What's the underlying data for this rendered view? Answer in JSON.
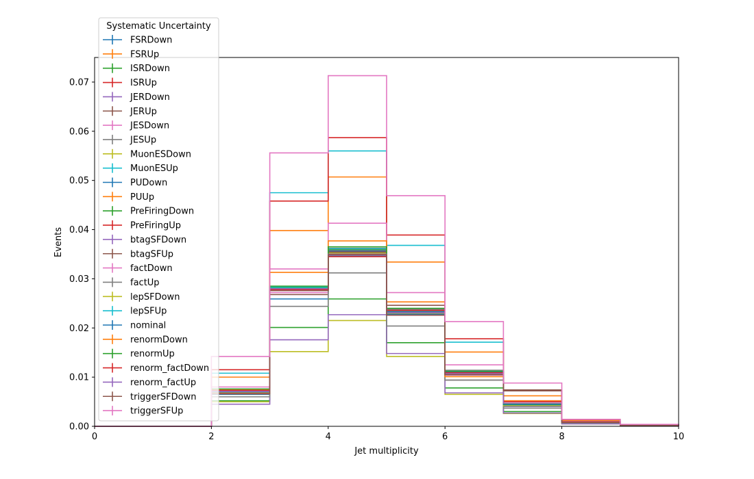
{
  "chart_data": {
    "type": "line",
    "title": "",
    "xlabel": "Jet multiplicity",
    "ylabel": "Events",
    "xlim": [
      0,
      10
    ],
    "ylim": [
      0,
      0.075
    ],
    "xticks": [
      "0",
      "2",
      "4",
      "6",
      "8",
      "10"
    ],
    "yticks": [
      "0.00",
      "0.01",
      "0.02",
      "0.03",
      "0.04",
      "0.05",
      "0.06",
      "0.07"
    ],
    "legend": {
      "title": "Systematic Uncertainty",
      "position": "top-left"
    },
    "bin_edges": [
      0,
      1,
      2,
      3,
      4,
      5,
      6,
      7,
      8,
      9,
      10
    ],
    "series": [
      {
        "name": "FSRDown",
        "color": "#1f77b4",
        "values": [
          0.0,
          0.0,
          0.0068,
          0.0278,
          0.0355,
          0.0232,
          0.0108,
          0.0042,
          0.0008,
          0.0002
        ]
      },
      {
        "name": "FSRUp",
        "color": "#ff7f0e",
        "values": [
          0.0,
          0.0,
          0.0071,
          0.028,
          0.0358,
          0.0234,
          0.0111,
          0.0044,
          0.0009,
          0.0002
        ]
      },
      {
        "name": "ISRDown",
        "color": "#2ca02c",
        "values": [
          0.0,
          0.0,
          0.0072,
          0.0282,
          0.036,
          0.0236,
          0.0112,
          0.0045,
          0.0009,
          0.0002
        ]
      },
      {
        "name": "ISRUp",
        "color": "#d62728",
        "values": [
          0.0,
          0.0,
          0.0067,
          0.0276,
          0.035,
          0.023,
          0.0106,
          0.0041,
          0.0008,
          0.0002
        ]
      },
      {
        "name": "JERDown",
        "color": "#9467bd",
        "values": [
          0.0,
          0.0,
          0.007,
          0.0279,
          0.0356,
          0.0233,
          0.0109,
          0.0043,
          0.0008,
          0.0002
        ]
      },
      {
        "name": "JERUp",
        "color": "#8c564b",
        "values": [
          0.0,
          0.0,
          0.007,
          0.0279,
          0.0355,
          0.0232,
          0.0109,
          0.0043,
          0.0008,
          0.0002
        ]
      },
      {
        "name": "JESDown",
        "color": "#e377c2",
        "values": [
          0.0,
          0.0,
          0.0066,
          0.0272,
          0.0348,
          0.0226,
          0.0104,
          0.004,
          0.0008,
          0.0002
        ]
      },
      {
        "name": "JESUp",
        "color": "#7f7f7f",
        "values": [
          0.0,
          0.0,
          0.0074,
          0.0284,
          0.0362,
          0.0238,
          0.0114,
          0.0046,
          0.0009,
          0.0002
        ]
      },
      {
        "name": "MuonESDown",
        "color": "#bcbd22",
        "values": [
          0.0,
          0.0,
          0.005,
          0.0152,
          0.0215,
          0.0142,
          0.0065,
          0.0026,
          0.0005,
          0.0001
        ]
      },
      {
        "name": "MuonESUp",
        "color": "#17becf",
        "values": [
          0.0,
          0.0,
          0.0108,
          0.0475,
          0.056,
          0.0368,
          0.0171,
          0.0073,
          0.0013,
          0.0003
        ]
      },
      {
        "name": "PUDown",
        "color": "#1f77b4",
        "values": [
          0.0,
          0.0,
          0.0065,
          0.0259,
          0.0346,
          0.0228,
          0.0105,
          0.0041,
          0.0008,
          0.0002
        ]
      },
      {
        "name": "PUUp",
        "color": "#ff7f0e",
        "values": [
          0.0,
          0.0,
          0.01,
          0.0398,
          0.0507,
          0.0334,
          0.0151,
          0.0062,
          0.0012,
          0.0003
        ]
      },
      {
        "name": "PreFiringDown",
        "color": "#2ca02c",
        "values": [
          0.0,
          0.0,
          0.0052,
          0.0201,
          0.0259,
          0.017,
          0.0078,
          0.003,
          0.0006,
          0.0001
        ]
      },
      {
        "name": "PreFiringUp",
        "color": "#d62728",
        "values": [
          0.0,
          0.0,
          0.0115,
          0.0458,
          0.0587,
          0.0389,
          0.0178,
          0.0073,
          0.0014,
          0.0003
        ]
      },
      {
        "name": "btagSFDown",
        "color": "#9467bd",
        "values": [
          0.0,
          0.0,
          0.0045,
          0.0176,
          0.0227,
          0.0148,
          0.0068,
          0.0027,
          0.0005,
          0.0001
        ]
      },
      {
        "name": "btagSFUp",
        "color": "#8c564b",
        "values": [
          0.0,
          0.0,
          0.0074,
          0.0268,
          0.0353,
          0.0246,
          0.0094,
          0.0074,
          0.001,
          0.0003
        ]
      },
      {
        "name": "factDown",
        "color": "#e377c2",
        "values": [
          0.0,
          0.0,
          0.008,
          0.032,
          0.0413,
          0.0272,
          0.0125,
          0.0052,
          0.001,
          0.0002
        ]
      },
      {
        "name": "factUp",
        "color": "#7f7f7f",
        "values": [
          0.0,
          0.0,
          0.006,
          0.0244,
          0.0312,
          0.0204,
          0.0094,
          0.0037,
          0.0007,
          0.0002
        ]
      },
      {
        "name": "lepSFDown",
        "color": "#bcbd22",
        "values": [
          0.0,
          0.0,
          0.0069,
          0.0277,
          0.0352,
          0.023,
          0.0106,
          0.0042,
          0.0008,
          0.0002
        ]
      },
      {
        "name": "lepSFUp",
        "color": "#17becf",
        "values": [
          0.0,
          0.0,
          0.0072,
          0.0283,
          0.0361,
          0.0236,
          0.0112,
          0.0045,
          0.0009,
          0.0002
        ]
      },
      {
        "name": "nominal",
        "color": "#1f77b4",
        "values": [
          0.0,
          0.0,
          0.007,
          0.028,
          0.0357,
          0.0233,
          0.011,
          0.0044,
          0.0008,
          0.0002
        ]
      },
      {
        "name": "renormDown",
        "color": "#ff7f0e",
        "values": [
          0.0,
          0.0,
          0.0075,
          0.0313,
          0.0377,
          0.0253,
          0.0101,
          0.0052,
          0.0009,
          0.0002
        ]
      },
      {
        "name": "renormUp",
        "color": "#2ca02c",
        "values": [
          0.0,
          0.0,
          0.0076,
          0.0285,
          0.0365,
          0.024,
          0.0112,
          0.0046,
          0.0009,
          0.0002
        ]
      },
      {
        "name": "renorm_factDown",
        "color": "#d62728",
        "values": [
          0.0,
          0.0,
          0.0073,
          0.0278,
          0.0345,
          0.0236,
          0.0109,
          0.005,
          0.0009,
          0.0002
        ]
      },
      {
        "name": "renorm_factUp",
        "color": "#9467bd",
        "values": [
          0.0,
          0.0,
          0.0071,
          0.028,
          0.035,
          0.0231,
          0.0107,
          0.0047,
          0.0008,
          0.0002
        ]
      },
      {
        "name": "triggerSFDown",
        "color": "#8c564b",
        "values": [
          0.0,
          0.0,
          0.0066,
          0.0276,
          0.0349,
          0.0226,
          0.0105,
          0.0072,
          0.0008,
          0.0002
        ]
      },
      {
        "name": "triggerSFUp",
        "color": "#e377c2",
        "values": [
          0.0,
          0.0,
          0.0142,
          0.0556,
          0.0713,
          0.0469,
          0.0213,
          0.0088,
          0.0014,
          0.0004
        ]
      }
    ]
  }
}
